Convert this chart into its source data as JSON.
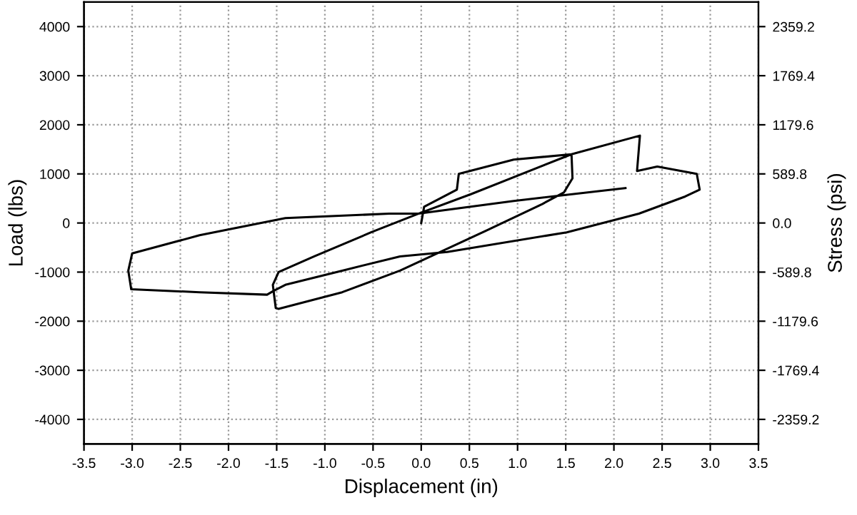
{
  "chart_data": {
    "type": "line",
    "xlabel": "Displacement (in)",
    "ylabel": "Load (lbs)",
    "y2label": "Stress (psi)",
    "xlim": [
      -3.5,
      3.5
    ],
    "xticks": [
      -3.5,
      {
        "value": -3,
        "label": "-3.0"
      },
      -2.5,
      {
        "value": -2,
        "label": "-2.0"
      },
      -1.5,
      {
        "value": -1,
        "label": "-1.0"
      },
      -0.5,
      {
        "value": 0,
        "label": "0.0"
      },
      0.5,
      {
        "value": 1,
        "label": "1.0"
      },
      1.5,
      {
        "value": 2,
        "label": "2.0"
      },
      2.5,
      {
        "value": 3,
        "label": "3.0"
      },
      3.5
    ],
    "ylim": [
      -4500,
      4500
    ],
    "yticks": [
      -4000,
      -3000,
      -2000,
      -1000,
      0,
      1000,
      2000,
      3000,
      4000
    ],
    "y2lim": [
      -2654.1,
      2654.1
    ],
    "y2ticks": [
      -2359.2,
      -1769.4,
      -1179.6,
      -589.8,
      {
        "value": 0,
        "label": "0.0"
      },
      589.8,
      1179.6,
      1769.4,
      2359.2
    ],
    "grid": true,
    "marker": "none",
    "line_style": "solid",
    "series": [
      {
        "color": "#000000",
        "x": [
          0,
          0.03,
          0.37,
          0.39,
          0.96,
          1.56,
          1.57,
          1.48,
          1.26,
          0.67,
          -0.22,
          -0.82,
          -1.48,
          -1.51,
          -1.54,
          -1.48,
          -1.11,
          -0.52,
          -0.03,
          0.52,
          1.56,
          2.27,
          2.24,
          2.45,
          2.86,
          2.89,
          2.74,
          2.26,
          1.51,
          0.27,
          -0.22,
          -0.82,
          -1.41,
          -1.53,
          -1.6,
          -2.3,
          -3.01,
          -3.04,
          -3.0,
          -2.3,
          -1.41,
          -0.33,
          -0.03,
          0.96,
          2.12
        ],
        "values": [
          0,
          330,
          680,
          1000,
          1290,
          1400,
          910,
          620,
          390,
          -160,
          -970,
          -1410,
          -1750,
          -1730,
          -1260,
          -1000,
          -680,
          -190,
          190,
          590,
          1400,
          1780,
          1060,
          1150,
          1000,
          680,
          540,
          190,
          -190,
          -590,
          -680,
          -970,
          -1260,
          -1380,
          -1460,
          -1410,
          -1350,
          -970,
          -620,
          -250,
          100,
          190,
          190,
          450,
          710
        ]
      }
    ]
  }
}
